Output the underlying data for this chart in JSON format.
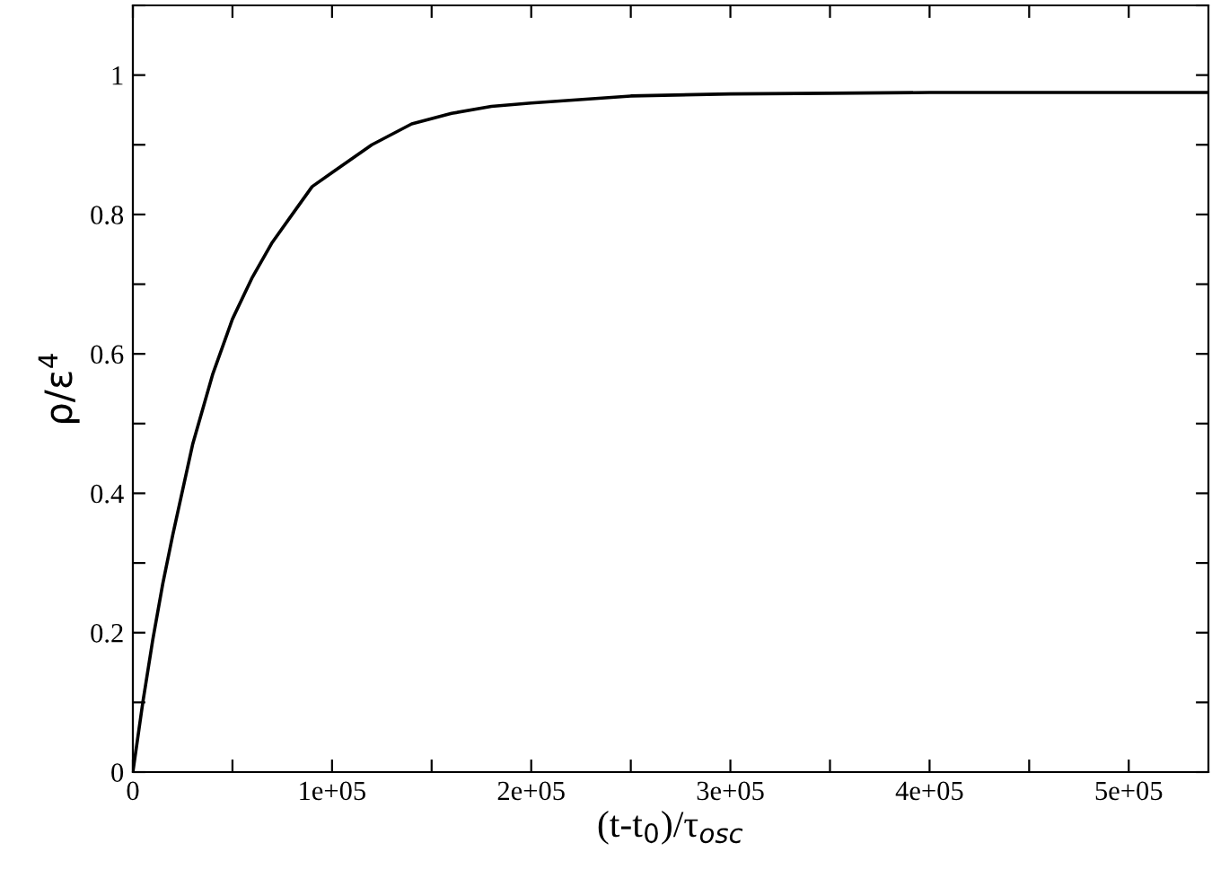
{
  "chart_data": {
    "type": "line",
    "xlabel": "(t-t$_{0}$)/τ$_{osc}$",
    "ylabel": "ρ/ε$^{4}$",
    "x": [
      0,
      5000,
      10000,
      15000,
      20000,
      30000,
      40000,
      50000,
      60000,
      70000,
      80000,
      90000,
      100000,
      120000,
      140000,
      160000,
      180000,
      200000,
      250000,
      300000,
      350000,
      400000,
      540000
    ],
    "series": [
      {
        "color": "#000000",
        "values": [
          0,
          0.1,
          0.19,
          0.27,
          0.34,
          0.47,
          0.57,
          0.65,
          0.71,
          0.76,
          0.8,
          0.84,
          0.86,
          0.9,
          0.93,
          0.945,
          0.955,
          0.96,
          0.97,
          0.973,
          0.974,
          0.975,
          0.975
        ]
      }
    ],
    "xlim": [
      0,
      540000
    ],
    "ylim": [
      0,
      1.1
    ],
    "xticks": [
      0,
      {
        "value": 50000,
        "label": null
      },
      {
        "value": 100000,
        "label": "1e+05"
      },
      {
        "value": 150000,
        "label": null
      },
      {
        "value": 200000,
        "label": "2e+05"
      },
      {
        "value": 250000,
        "label": null
      },
      {
        "value": 300000,
        "label": "3e+05"
      },
      {
        "value": 350000,
        "label": null
      },
      {
        "value": 400000,
        "label": "4e+05"
      },
      {
        "value": 450000,
        "label": null
      },
      {
        "value": 500000,
        "label": "5e+05"
      }
    ],
    "yticks": [
      0,
      {
        "value": 0.1,
        "label": null
      },
      0.2,
      {
        "value": 0.3,
        "label": null
      },
      0.4,
      {
        "value": 0.5,
        "label": null
      },
      0.6,
      {
        "value": 0.7,
        "label": null
      },
      0.8,
      {
        "value": 0.9,
        "label": null
      },
      1,
      {
        "value": 1.1,
        "label": null
      }
    ],
    "grid": false,
    "legend": false,
    "marker": "none",
    "line_style": "solid"
  }
}
